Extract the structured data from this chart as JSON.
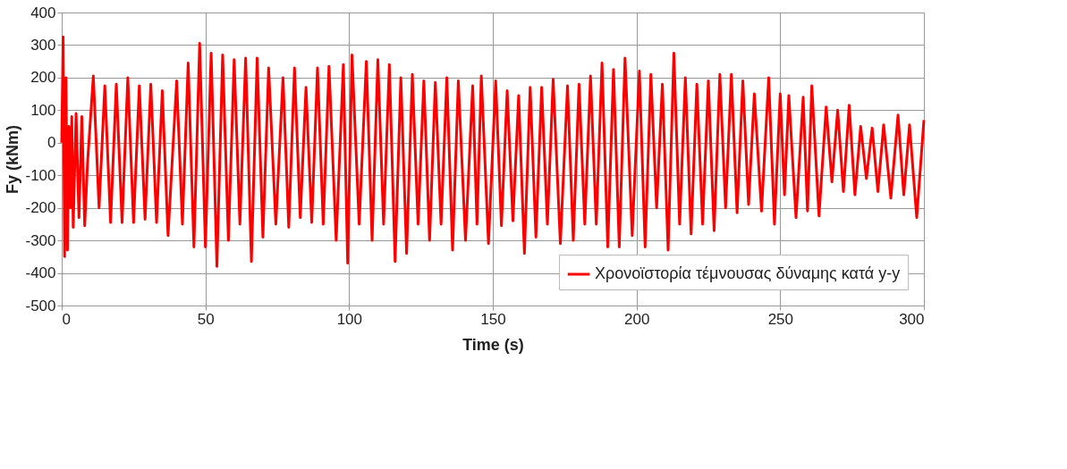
{
  "chart_data": {
    "type": "line",
    "xlabel": "Time (s)",
    "ylabel": "Fy (kNm)",
    "x": [
      0,
      0.5,
      1,
      1.5,
      2,
      2.5,
      3,
      3.5,
      4,
      5,
      6,
      7,
      8,
      9,
      11,
      13,
      15,
      17,
      19,
      21,
      23,
      25,
      27,
      29,
      31,
      33,
      35,
      37,
      40,
      42,
      44,
      46,
      48,
      50,
      52,
      54,
      56,
      58,
      60,
      62,
      64,
      66,
      68,
      70,
      72,
      74.5,
      77,
      79,
      81,
      83,
      85,
      87,
      89,
      91,
      93,
      95.5,
      98,
      99.5,
      101,
      103.5,
      106,
      108,
      110,
      112,
      114,
      116,
      118,
      120,
      122,
      124,
      126,
      128,
      130,
      132,
      134,
      136,
      138,
      140.5,
      143,
      144.5,
      146,
      148.5,
      151,
      153,
      155,
      157,
      159,
      161,
      163,
      165,
      167,
      169,
      171,
      173.5,
      176,
      178,
      180,
      182,
      184,
      186,
      188,
      190,
      192,
      194,
      196,
      198.5,
      201,
      203,
      205,
      207,
      209,
      211,
      213,
      215,
      217,
      219,
      221,
      223,
      225,
      227,
      229,
      231,
      233,
      235,
      237,
      239,
      241,
      243.5,
      246,
      248,
      250,
      251.5,
      253,
      255.5,
      258,
      259.5,
      261,
      263.5,
      266,
      268,
      270,
      272,
      274,
      276,
      278,
      280,
      282,
      284,
      286,
      288.5,
      291,
      293,
      295,
      297.5,
      300
    ],
    "series": [
      {
        "name": "Χρονοϊστορία τέμνουσας δύναμης κατά y-y",
        "color": "#ff0000",
        "values": [
          0,
          325,
          -350,
          200,
          -330,
          50,
          -200,
          80,
          -260,
          90,
          -230,
          80,
          -255,
          -60,
          205,
          -200,
          175,
          -245,
          180,
          -245,
          200,
          -245,
          175,
          -235,
          180,
          -245,
          160,
          -285,
          190,
          -250,
          245,
          -320,
          305,
          -320,
          275,
          -380,
          270,
          -300,
          255,
          -250,
          260,
          -365,
          260,
          -290,
          230,
          -250,
          200,
          -260,
          230,
          -230,
          170,
          -245,
          230,
          -250,
          235,
          -300,
          240,
          -370,
          270,
          -250,
          250,
          -300,
          255,
          -250,
          240,
          -365,
          200,
          -340,
          210,
          -250,
          190,
          -300,
          185,
          -250,
          200,
          -330,
          190,
          -300,
          175,
          -250,
          205,
          -310,
          190,
          -255,
          160,
          -240,
          145,
          -340,
          170,
          -290,
          170,
          -250,
          195,
          -310,
          175,
          -300,
          180,
          -250,
          205,
          -250,
          245,
          -320,
          225,
          -320,
          260,
          -285,
          220,
          -320,
          210,
          -200,
          180,
          -330,
          275,
          -250,
          200,
          -280,
          180,
          -250,
          190,
          -270,
          210,
          -200,
          210,
          -215,
          190,
          -190,
          150,
          -210,
          200,
          -250,
          150,
          -160,
          145,
          -230,
          140,
          -210,
          175,
          -225,
          110,
          -120,
          100,
          -150,
          115,
          -160,
          50,
          -110,
          45,
          -150,
          55,
          -170,
          85,
          -160,
          55,
          -230,
          70
        ]
      }
    ],
    "xlim": [
      0,
      300
    ],
    "xticks": [
      0,
      50,
      100,
      150,
      200,
      250,
      300
    ],
    "ylim": [
      -500,
      400
    ],
    "yticks": [
      -500,
      -400,
      -300,
      -200,
      -100,
      0,
      100,
      200,
      300,
      400
    ],
    "grid": true,
    "legend": "bottom right",
    "line_style": "solid",
    "marker": "none"
  }
}
